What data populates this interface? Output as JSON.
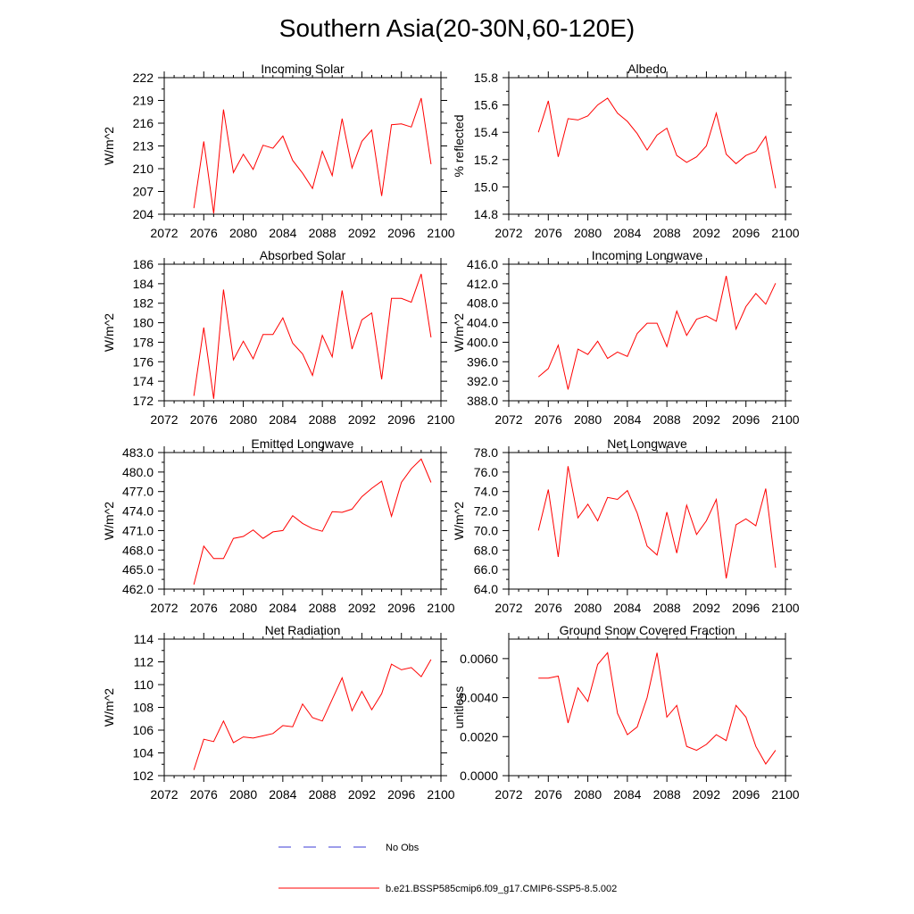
{
  "figure_title": "Southern Asia(20-30N,60-120E)",
  "legend": {
    "obs_label": "No Obs",
    "obs_color": "#3b3bd6",
    "model_label": "b.e21.BSSP585cmip6.f09_g17.CMIP6-SSP5-8.5.002",
    "model_color": "#ff0000"
  },
  "chart_data": [
    {
      "type": "line",
      "title": "Incoming Solar",
      "xlabel": "",
      "ylabel": "W/m^2",
      "xlim": [
        2072,
        2100
      ],
      "xticks": [
        "2072",
        "2076",
        "2080",
        "2084",
        "2088",
        "2092",
        "2096",
        "2100"
      ],
      "ylim": [
        204,
        222
      ],
      "yticks": [
        "204",
        "207",
        "210",
        "213",
        "216",
        "219",
        "222"
      ],
      "x": [
        2075,
        2076,
        2077,
        2078,
        2079,
        2080,
        2081,
        2082,
        2083,
        2084,
        2085,
        2086,
        2087,
        2088,
        2089,
        2090,
        2091,
        2092,
        2093,
        2094,
        2095,
        2096,
        2097,
        2098,
        2099
      ],
      "series": [
        {
          "name": "b.e21.BSSP585cmip6.f09_g17.CMIP6-SSP5-8.5.002",
          "values": [
            204.8,
            213.6,
            204.1,
            217.8,
            209.5,
            211.9,
            209.9,
            213.1,
            212.7,
            214.3,
            211.1,
            209.4,
            207.4,
            212.3,
            209.1,
            216.6,
            210.1,
            213.6,
            215.1,
            206.4,
            215.8,
            215.9,
            215.5,
            219.3,
            210.6
          ]
        }
      ]
    },
    {
      "type": "line",
      "title": "Albedo",
      "xlabel": "",
      "ylabel": "% reflected",
      "xlim": [
        2072,
        2100
      ],
      "xticks": [
        "2072",
        "2076",
        "2080",
        "2084",
        "2088",
        "2092",
        "2096",
        "2100"
      ],
      "ylim": [
        14.8,
        15.8
      ],
      "yticks": [
        "14.8",
        "15.0",
        "15.2",
        "15.4",
        "15.6",
        "15.8"
      ],
      "x": [
        2075,
        2076,
        2077,
        2078,
        2079,
        2080,
        2081,
        2082,
        2083,
        2084,
        2085,
        2086,
        2087,
        2088,
        2089,
        2090,
        2091,
        2092,
        2093,
        2094,
        2095,
        2096,
        2097,
        2098,
        2099
      ],
      "series": [
        {
          "name": "b.e21.BSSP585cmip6.f09_g17.CMIP6-SSP5-8.5.002",
          "values": [
            15.4,
            15.63,
            15.22,
            15.5,
            15.49,
            15.52,
            15.6,
            15.65,
            15.54,
            15.48,
            15.39,
            15.27,
            15.38,
            15.43,
            15.23,
            15.18,
            15.22,
            15.3,
            15.54,
            15.24,
            15.17,
            15.23,
            15.26,
            15.37,
            14.99
          ]
        }
      ]
    },
    {
      "type": "line",
      "title": "Absorbed Solar",
      "xlabel": "",
      "ylabel": "W/m^2",
      "xlim": [
        2072,
        2100
      ],
      "xticks": [
        "2072",
        "2076",
        "2080",
        "2084",
        "2088",
        "2092",
        "2096",
        "2100"
      ],
      "ylim": [
        172,
        186
      ],
      "yticks": [
        "172",
        "174",
        "176",
        "178",
        "180",
        "182",
        "184",
        "186"
      ],
      "x": [
        2075,
        2076,
        2077,
        2078,
        2079,
        2080,
        2081,
        2082,
        2083,
        2084,
        2085,
        2086,
        2087,
        2088,
        2089,
        2090,
        2091,
        2092,
        2093,
        2094,
        2095,
        2096,
        2097,
        2098,
        2099
      ],
      "series": [
        {
          "name": "b.e21.BSSP585cmip6.f09_g17.CMIP6-SSP5-8.5.002",
          "values": [
            172.5,
            179.5,
            172.2,
            183.4,
            176.2,
            178.1,
            176.3,
            178.8,
            178.8,
            180.5,
            177.9,
            176.8,
            174.6,
            178.7,
            176.5,
            183.3,
            177.3,
            180.3,
            181.0,
            174.2,
            182.5,
            182.5,
            182.1,
            185.0,
            178.5
          ]
        }
      ]
    },
    {
      "type": "line",
      "title": "Incoming Longwave",
      "xlabel": "",
      "ylabel": "W/m^2",
      "xlim": [
        2072,
        2100
      ],
      "xticks": [
        "2072",
        "2076",
        "2080",
        "2084",
        "2088",
        "2092",
        "2096",
        "2100"
      ],
      "ylim": [
        388.0,
        416.0
      ],
      "yticks": [
        "388.0",
        "392.0",
        "396.0",
        "400.0",
        "404.0",
        "408.0",
        "412.0",
        "416.0"
      ],
      "x": [
        2075,
        2076,
        2077,
        2078,
        2079,
        2080,
        2081,
        2082,
        2083,
        2084,
        2085,
        2086,
        2087,
        2088,
        2089,
        2090,
        2091,
        2092,
        2093,
        2094,
        2095,
        2096,
        2097,
        2098,
        2099
      ],
      "series": [
        {
          "name": "b.e21.BSSP585cmip6.f09_g17.CMIP6-SSP5-8.5.002",
          "values": [
            392.9,
            394.6,
            399.4,
            390.3,
            398.6,
            397.5,
            400.2,
            396.7,
            398.0,
            397.1,
            401.8,
            403.9,
            403.9,
            399.1,
            406.4,
            401.4,
            404.7,
            405.4,
            404.3,
            413.6,
            402.7,
            407.3,
            410.0,
            407.8,
            412.1
          ]
        }
      ]
    },
    {
      "type": "line",
      "title": "Emitted Longwave",
      "xlabel": "",
      "ylabel": "W/m^2",
      "xlim": [
        2072,
        2100
      ],
      "xticks": [
        "2072",
        "2076",
        "2080",
        "2084",
        "2088",
        "2092",
        "2096",
        "2100"
      ],
      "ylim": [
        462.0,
        483.0
      ],
      "yticks": [
        "462.0",
        "465.0",
        "468.0",
        "471.0",
        "474.0",
        "477.0",
        "480.0",
        "483.0"
      ],
      "x": [
        2075,
        2076,
        2077,
        2078,
        2079,
        2080,
        2081,
        2082,
        2083,
        2084,
        2085,
        2086,
        2087,
        2088,
        2089,
        2090,
        2091,
        2092,
        2093,
        2094,
        2095,
        2096,
        2097,
        2098,
        2099
      ],
      "series": [
        {
          "name": "b.e21.BSSP585cmip6.f09_g17.CMIP6-SSP5-8.5.002",
          "values": [
            462.7,
            468.6,
            466.7,
            466.7,
            469.8,
            470.1,
            471.1,
            469.8,
            470.8,
            471.0,
            473.3,
            472.1,
            471.3,
            470.9,
            473.9,
            473.8,
            474.3,
            476.2,
            477.5,
            478.6,
            473.2,
            478.4,
            480.5,
            482.0,
            478.4
          ]
        }
      ]
    },
    {
      "type": "line",
      "title": "Net Longwave",
      "xlabel": "",
      "ylabel": "W/m^2",
      "xlim": [
        2072,
        2100
      ],
      "xticks": [
        "2072",
        "2076",
        "2080",
        "2084",
        "2088",
        "2092",
        "2096",
        "2100"
      ],
      "ylim": [
        64.0,
        78.0
      ],
      "yticks": [
        "64.0",
        "66.0",
        "68.0",
        "70.0",
        "72.0",
        "74.0",
        "76.0",
        "78.0"
      ],
      "x": [
        2075,
        2076,
        2077,
        2078,
        2079,
        2080,
        2081,
        2082,
        2083,
        2084,
        2085,
        2086,
        2087,
        2088,
        2089,
        2090,
        2091,
        2092,
        2093,
        2094,
        2095,
        2096,
        2097,
        2098,
        2099
      ],
      "series": [
        {
          "name": "b.e21.BSSP585cmip6.f09_g17.CMIP6-SSP5-8.5.002",
          "values": [
            70.0,
            74.2,
            67.3,
            76.6,
            71.3,
            72.7,
            71.0,
            73.4,
            73.2,
            74.1,
            71.8,
            68.4,
            67.5,
            71.9,
            67.7,
            72.6,
            69.6,
            71.0,
            73.2,
            65.1,
            70.6,
            71.2,
            70.5,
            74.3,
            66.2
          ]
        }
      ]
    },
    {
      "type": "line",
      "title": "Net Radiation",
      "xlabel": "",
      "ylabel": "W/m^2",
      "xlim": [
        2072,
        2100
      ],
      "xticks": [
        "2072",
        "2076",
        "2080",
        "2084",
        "2088",
        "2092",
        "2096",
        "2100"
      ],
      "ylim": [
        102,
        114
      ],
      "yticks": [
        "102",
        "104",
        "106",
        "108",
        "110",
        "112",
        "114"
      ],
      "x": [
        2075,
        2076,
        2077,
        2078,
        2079,
        2080,
        2081,
        2082,
        2083,
        2084,
        2085,
        2086,
        2087,
        2088,
        2089,
        2090,
        2091,
        2092,
        2093,
        2094,
        2095,
        2096,
        2097,
        2098,
        2099
      ],
      "series": [
        {
          "name": "b.e21.BSSP585cmip6.f09_g17.CMIP6-SSP5-8.5.002",
          "values": [
            102.5,
            105.2,
            105.0,
            106.8,
            104.9,
            105.4,
            105.3,
            105.5,
            105.7,
            106.4,
            106.3,
            108.3,
            107.1,
            106.8,
            108.7,
            110.6,
            107.7,
            109.4,
            107.8,
            109.2,
            111.8,
            111.3,
            111.5,
            110.7,
            112.2
          ]
        }
      ]
    },
    {
      "type": "line",
      "title": "Ground Snow Covered Fraction",
      "xlabel": "",
      "ylabel": "unitless",
      "xlim": [
        2072,
        2100
      ],
      "xticks": [
        "2072",
        "2076",
        "2080",
        "2084",
        "2088",
        "2092",
        "2096",
        "2100"
      ],
      "ylim": [
        0.0,
        0.007
      ],
      "yticks": [
        "0.0000",
        "0.0020",
        "0.0040",
        "0.0060"
      ],
      "x": [
        2075,
        2076,
        2077,
        2078,
        2079,
        2080,
        2081,
        2082,
        2083,
        2084,
        2085,
        2086,
        2087,
        2088,
        2089,
        2090,
        2091,
        2092,
        2093,
        2094,
        2095,
        2096,
        2097,
        2098,
        2099
      ],
      "series": [
        {
          "name": "b.e21.BSSP585cmip6.f09_g17.CMIP6-SSP5-8.5.002",
          "values": [
            0.005,
            0.005,
            0.0051,
            0.0027,
            0.0045,
            0.0038,
            0.0057,
            0.0063,
            0.0032,
            0.0021,
            0.0025,
            0.004,
            0.0063,
            0.003,
            0.0036,
            0.0015,
            0.0013,
            0.0016,
            0.0021,
            0.0018,
            0.0036,
            0.003,
            0.0015,
            0.0006,
            0.0013
          ]
        }
      ]
    }
  ]
}
